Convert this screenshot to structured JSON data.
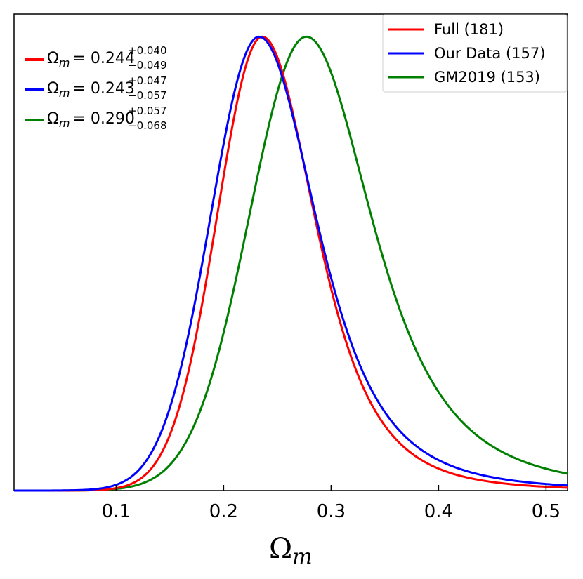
{
  "chart_data": {
    "type": "line",
    "title": "",
    "xlabel": "Ω",
    "xlabel_sub": "m",
    "ylabel": "",
    "xlim": [
      0.005,
      0.52
    ],
    "ylim": [
      0,
      1.05
    ],
    "xticks": [
      {
        "value": 0.1,
        "label": "0.1"
      },
      {
        "value": 0.2,
        "label": "0.2"
      },
      {
        "value": 0.3,
        "label": "0.3"
      },
      {
        "value": 0.4,
        "label": "0.4"
      },
      {
        "value": 0.5,
        "label": "0.5"
      }
    ],
    "series": [
      {
        "name": "Full (181)",
        "color": "#ff0000",
        "peak": 0.236,
        "sigma_left": 0.042,
        "sigma_right": 0.052,
        "tail": 3.5
      },
      {
        "name": "Our Data (157)",
        "color": "#0000ff",
        "peak": 0.233,
        "sigma_left": 0.045,
        "sigma_right": 0.057,
        "tail": 3.0
      },
      {
        "name": "GM2019 (153)",
        "color": "#008000",
        "peak": 0.277,
        "sigma_left": 0.053,
        "sigma_right": 0.066,
        "tail": 2.6
      }
    ],
    "annotations": [
      {
        "color": "#ff0000",
        "symbol": "Ω",
        "sub": "m",
        "value": "= 0.244",
        "plus": "+0.040",
        "minus": "−0.049"
      },
      {
        "color": "#0000ff",
        "symbol": "Ω",
        "sub": "m",
        "value": "= 0.243",
        "plus": "+0.047",
        "minus": "−0.057"
      },
      {
        "color": "#008000",
        "symbol": "Ω",
        "sub": "m",
        "value": "= 0.290",
        "plus": "+0.057",
        "minus": "−0.068"
      }
    ],
    "legend_position": "top-right"
  }
}
